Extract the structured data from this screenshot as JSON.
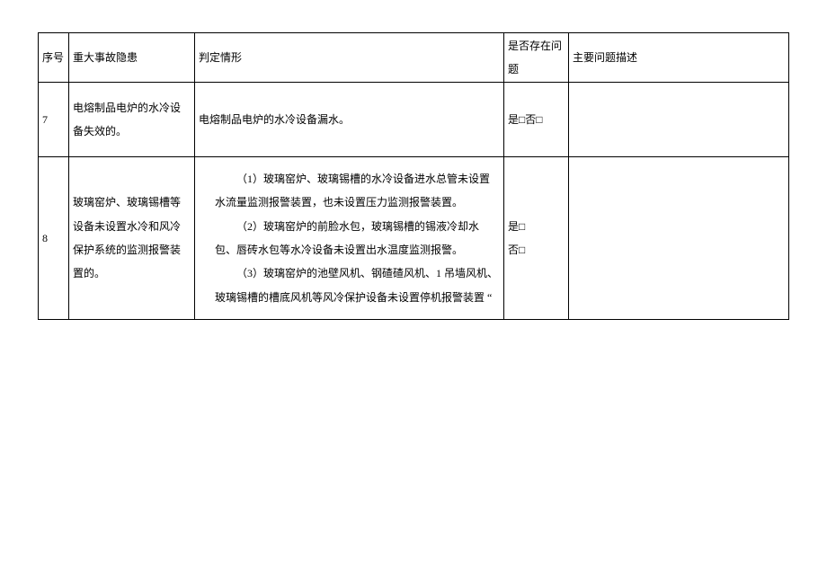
{
  "columns": {
    "seq": "序号",
    "hazard": "重大事故隐患",
    "cond": "判定情形",
    "exist": "是否存在问题",
    "desc": "主要问题描述"
  },
  "rows": [
    {
      "seq": "7",
      "hazard": "电熔制品电炉的水冷设备失效的。",
      "cond": "电熔制品电炉的水冷设备漏水。",
      "exist": "是□否□",
      "desc": ""
    },
    {
      "seq": "8",
      "hazard": "玻璃窑炉、玻璃锡槽等设备未设置水冷和风冷保护系统的监测报警装置的。",
      "cond_p1": "（1）玻璃窑炉、玻璃锡槽的水冷设备进水总管未设置水流量监测报警装置，也未设置压力监测报警装置。",
      "cond_p2": "（2）玻璃窑炉的前脸水包，玻璃锡槽的锡液冷却水包、唇砖水包等水冷设备未设置出水温度监测报警。",
      "cond_p3": "（3）玻璃窑炉的池壁风机、钢碴碴风机、1 吊墙风机、玻璃锡槽的槽底风机等风冷保护设备未设置停机报警装置 “",
      "exist_yes": "是□",
      "exist_no": "否□",
      "desc": ""
    }
  ]
}
